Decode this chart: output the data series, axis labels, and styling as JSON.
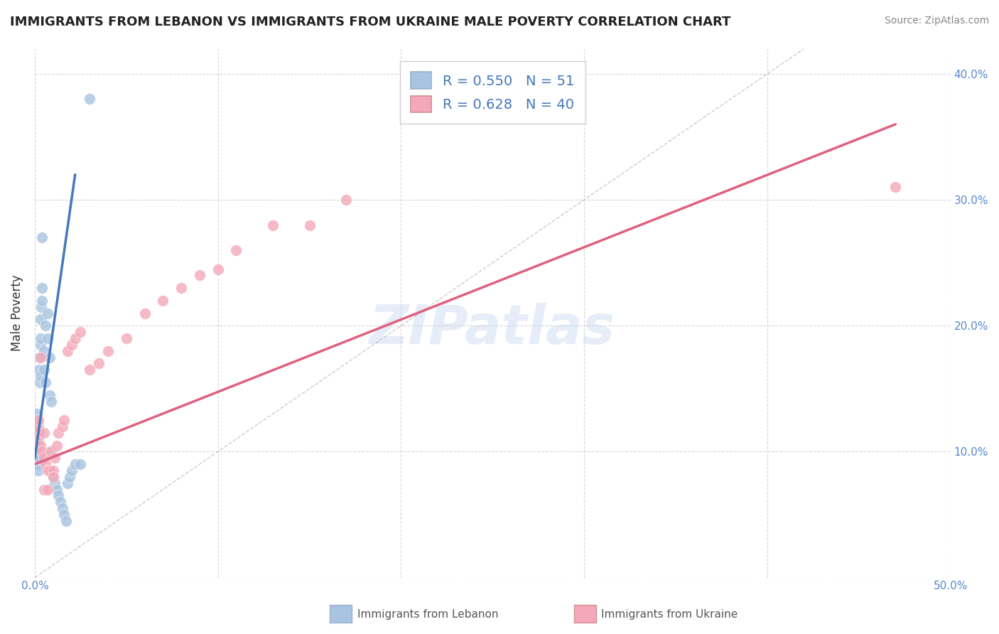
{
  "title": "IMMIGRANTS FROM LEBANON VS IMMIGRANTS FROM UKRAINE MALE POVERTY CORRELATION CHART",
  "source": "Source: ZipAtlas.com",
  "ylabel": "Male Poverty",
  "xlim": [
    0.0,
    0.5
  ],
  "ylim": [
    0.0,
    0.42
  ],
  "background_color": "#ffffff",
  "grid_color": "#cccccc",
  "lebanon_color": "#a8c4e0",
  "ukraine_color": "#f4a8b8",
  "lebanon_line_color": "#4477bb",
  "ukraine_line_color": "#e06080",
  "lebanon_R": 0.55,
  "lebanon_N": 51,
  "ukraine_R": 0.628,
  "ukraine_N": 40,
  "lebanon_x": [
    0.0005,
    0.0008,
    0.001,
    0.001,
    0.0012,
    0.0013,
    0.0014,
    0.0015,
    0.0016,
    0.0017,
    0.0018,
    0.002,
    0.002,
    0.002,
    0.0022,
    0.0023,
    0.0025,
    0.0025,
    0.0027,
    0.003,
    0.003,
    0.003,
    0.0032,
    0.0035,
    0.0038,
    0.004,
    0.004,
    0.005,
    0.005,
    0.006,
    0.006,
    0.007,
    0.007,
    0.008,
    0.008,
    0.009,
    0.01,
    0.011,
    0.012,
    0.013,
    0.014,
    0.015,
    0.016,
    0.017,
    0.018,
    0.019,
    0.02,
    0.022,
    0.025,
    0.03,
    0.008
  ],
  "lebanon_y": [
    0.115,
    0.11,
    0.12,
    0.125,
    0.13,
    0.115,
    0.1,
    0.105,
    0.1,
    0.095,
    0.09,
    0.085,
    0.115,
    0.12,
    0.095,
    0.115,
    0.175,
    0.165,
    0.155,
    0.16,
    0.185,
    0.19,
    0.205,
    0.215,
    0.23,
    0.22,
    0.27,
    0.165,
    0.18,
    0.155,
    0.2,
    0.21,
    0.19,
    0.175,
    0.145,
    0.14,
    0.08,
    0.075,
    0.07,
    0.065,
    0.06,
    0.055,
    0.05,
    0.045,
    0.075,
    0.08,
    0.085,
    0.09,
    0.09,
    0.38,
    0.1
  ],
  "ukraine_x": [
    0.001,
    0.001,
    0.002,
    0.002,
    0.003,
    0.003,
    0.004,
    0.005,
    0.005,
    0.006,
    0.007,
    0.008,
    0.009,
    0.01,
    0.011,
    0.012,
    0.013,
    0.015,
    0.016,
    0.018,
    0.02,
    0.022,
    0.025,
    0.03,
    0.035,
    0.04,
    0.05,
    0.06,
    0.07,
    0.08,
    0.09,
    0.1,
    0.11,
    0.13,
    0.15,
    0.17,
    0.005,
    0.007,
    0.01,
    0.47
  ],
  "ukraine_y": [
    0.115,
    0.12,
    0.11,
    0.125,
    0.105,
    0.175,
    0.1,
    0.095,
    0.115,
    0.09,
    0.085,
    0.085,
    0.1,
    0.085,
    0.095,
    0.105,
    0.115,
    0.12,
    0.125,
    0.18,
    0.185,
    0.19,
    0.195,
    0.165,
    0.17,
    0.18,
    0.19,
    0.21,
    0.22,
    0.23,
    0.24,
    0.245,
    0.26,
    0.28,
    0.28,
    0.3,
    0.07,
    0.07,
    0.08,
    0.31
  ],
  "leb_line_x": [
    0.0,
    0.022
  ],
  "leb_line_y": [
    0.095,
    0.32
  ],
  "ukr_line_x": [
    0.0,
    0.47
  ],
  "ukr_line_y": [
    0.09,
    0.36
  ]
}
